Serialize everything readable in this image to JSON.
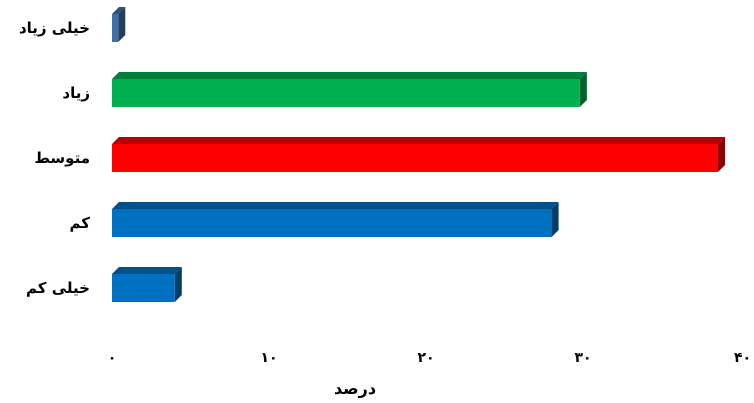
{
  "chart_data": {
    "type": "bar",
    "orientation": "horizontal",
    "three_d": true,
    "categories": [
      "خیلی زیاد",
      "زیاد",
      "متوسط",
      "کم",
      "خیلی کم"
    ],
    "values": [
      0.4,
      29.8,
      38.6,
      28.0,
      4.0
    ],
    "colors": [
      "#3f6fa8",
      "#00b050",
      "#ff0000",
      "#0070c0",
      "#0070c0"
    ],
    "xlabel": "درصد",
    "xlim": [
      0,
      40
    ],
    "xticks": [
      0,
      10,
      20,
      30,
      40
    ],
    "xtick_labels": [
      "۰",
      "۱۰",
      "۲۰",
      "۳۰",
      "۴۰"
    ],
    "grid": false,
    "legend": "none"
  }
}
